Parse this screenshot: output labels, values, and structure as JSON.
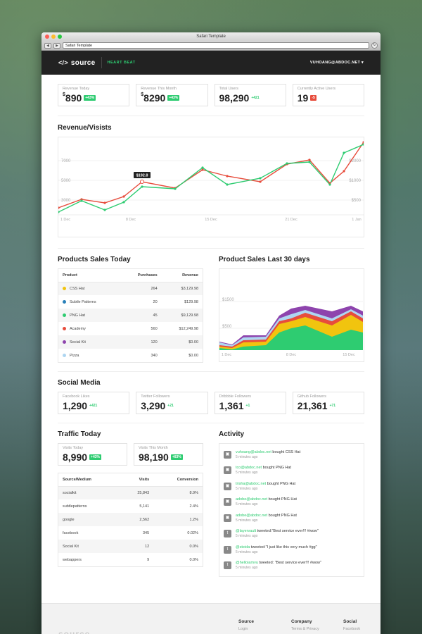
{
  "window": {
    "title": "Safari Template",
    "url": "Safari Template"
  },
  "header": {
    "logo": "source",
    "section": "HEART BEAT",
    "user": "VUHOANG@ABDOC.NET ▾"
  },
  "stats": [
    {
      "label": "Revenue Today",
      "currency": "$",
      "value": "890",
      "badge": "+43%",
      "badge_type": "green"
    },
    {
      "label": "Revenue This Month",
      "currency": "$",
      "value": "8290",
      "badge": "+43%",
      "badge_type": "green"
    },
    {
      "label": "Total Users",
      "currency": "",
      "value": "98,290",
      "badge": "+421",
      "badge_type": "plain"
    },
    {
      "label": "Currently Active Users",
      "currency": "",
      "value": "19",
      "badge": "-5",
      "badge_type": "red"
    }
  ],
  "revenue_chart": {
    "title": "Revenue/Visists",
    "tooltip": "$192.8",
    "left_ticks": [
      "7000",
      "5000",
      "3000"
    ],
    "right_ticks": [
      "$2000",
      "$1000",
      "$500"
    ],
    "x_ticks": [
      "1 Dec",
      "8 Dec",
      "15 Dec",
      "21 Dec",
      "1 Jan"
    ]
  },
  "products_today": {
    "title": "Products Sales Today",
    "headers": [
      "Product",
      "Purchases",
      "Revenue"
    ],
    "rows": [
      {
        "name": "CSS Hat",
        "color": "#f1c40f",
        "purchases": "264",
        "revenue": "$3,129.98"
      },
      {
        "name": "Subtle Patterns",
        "color": "#2980b9",
        "purchases": "20",
        "revenue": "$129.98"
      },
      {
        "name": "PNG Hat",
        "color": "#2ecc71",
        "purchases": "45",
        "revenue": "$9,129.98"
      },
      {
        "name": "Academy",
        "color": "#e74c3c",
        "purchases": "560",
        "revenue": "$12,249.98"
      },
      {
        "name": "Social Kit",
        "color": "#8e44ad",
        "purchases": "120",
        "revenue": "$0.00"
      },
      {
        "name": "Pizza",
        "color": "#aed6f1",
        "purchases": "340",
        "revenue": "$0.00"
      }
    ]
  },
  "sales_30": {
    "title": "Product Sales Last 30 days",
    "y_ticks": [
      "$1500",
      "$500"
    ],
    "x_ticks": [
      "1 Dec",
      "8 Dec",
      "15 Dec"
    ]
  },
  "social": {
    "title": "Social Media",
    "items": [
      {
        "label": "Facebook Likes",
        "value": "1,290",
        "delta": "+421"
      },
      {
        "label": "Twitter Followers",
        "value": "3,290",
        "delta": "+21"
      },
      {
        "label": "Dribbble Followers",
        "value": "1,361",
        "delta": "+1"
      },
      {
        "label": "Github Followers",
        "value": "21,361",
        "delta": "+71"
      }
    ]
  },
  "traffic": {
    "title": "Traffic Today",
    "visits_today": {
      "label": "Visits Today",
      "value": "8,990",
      "badge": "+43%"
    },
    "visits_month": {
      "label": "Visits This Month",
      "value": "98,190",
      "badge": "+83%"
    },
    "headers": [
      "Source/Medium",
      "Visits",
      "Conversion"
    ],
    "rows": [
      {
        "source": "socialkit",
        "visits": "25,843",
        "conv": "8.9%"
      },
      {
        "source": "subtlepatterns",
        "visits": "5,141",
        "conv": "2.4%"
      },
      {
        "source": "google",
        "visits": "2,562",
        "conv": "1.2%"
      },
      {
        "source": "facebook",
        "visits": "345",
        "conv": "0.02%"
      },
      {
        "source": "Social Kit",
        "visits": "12",
        "conv": "0.0%"
      },
      {
        "source": "webappers",
        "visits": "9",
        "conv": "0.0%"
      }
    ]
  },
  "activity": {
    "title": "Activity",
    "items": [
      {
        "icon": "bag",
        "who": "vuhoang@abdoc.net",
        "text": " bought CSS Hat",
        "time": "5 minutes ago"
      },
      {
        "icon": "bag",
        "who": "tco@abdoc.net",
        "text": " bought PNG Hat",
        "time": "5 minutes ago"
      },
      {
        "icon": "bag",
        "who": "trisha@abdoc.net",
        "text": " bought PNG Hat",
        "time": "5 minutes ago"
      },
      {
        "icon": "bag",
        "who": "adobe@abdoc.net",
        "text": " bought PNG Hat",
        "time": "5 minutes ago"
      },
      {
        "icon": "bag",
        "who": "adobe@abdoc.net",
        "text": " bought PNG Hat",
        "time": "5 minutes ago"
      },
      {
        "icon": "twitter",
        "who": "@layervault",
        "text": " tweeted:\"Best service ever!!! #wow\"",
        "time": "5 minutes ago"
      },
      {
        "icon": "twitter",
        "who": "@steida",
        "text": " tweeted:\"I just like this very much #gg\"",
        "time": "5 minutes ago"
      },
      {
        "icon": "twitter",
        "who": "@helloiamvu",
        "text": " tweeted: \"Best service ever!!! #wow\"",
        "time": "5 minutes ago"
      }
    ]
  },
  "footer": {
    "logo": "source",
    "cols": [
      {
        "title": "Source",
        "link": "Login"
      },
      {
        "title": "Company",
        "link": "Terms & Privacy"
      },
      {
        "title": "Social",
        "link": "Facebook"
      }
    ]
  }
}
